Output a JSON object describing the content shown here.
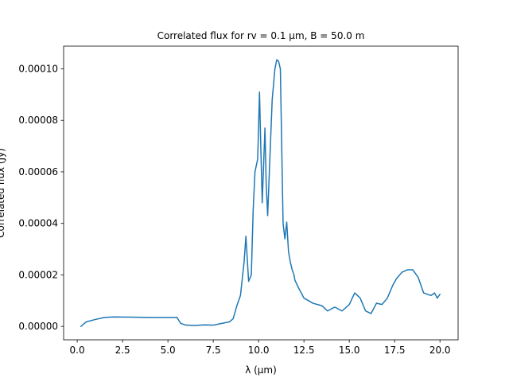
{
  "chart_data": {
    "type": "line",
    "title": "Correlated flux for rv = 0.1 μm, B = 50.0 m",
    "xlabel": "λ (μm)",
    "ylabel": "Correlated flux (Jy)",
    "xlim": [
      -0.75,
      21.0
    ],
    "ylim": [
      -5.2e-06,
      0.0001088
    ],
    "xticks": [
      0.0,
      2.5,
      5.0,
      7.5,
      10.0,
      12.5,
      15.0,
      17.5,
      20.0
    ],
    "xtick_labels": [
      "0.0",
      "2.5",
      "5.0",
      "7.5",
      "10.0",
      "12.5",
      "15.0",
      "17.5",
      "20.0"
    ],
    "yticks": [
      0.0,
      2e-05,
      4e-05,
      6e-05,
      8e-05,
      0.0001
    ],
    "ytick_labels": [
      "0.00000",
      "0.00002",
      "0.00004",
      "0.00006",
      "0.00008",
      "0.00010"
    ],
    "grid": false,
    "color": "#1f77b4",
    "series": [
      {
        "name": "",
        "x": [
          0.2,
          0.5,
          1.0,
          1.5,
          2.0,
          3.0,
          4.0,
          5.0,
          5.5,
          5.7,
          6.0,
          6.5,
          7.0,
          7.5,
          8.0,
          8.4,
          8.6,
          8.8,
          9.0,
          9.2,
          9.3,
          9.45,
          9.6,
          9.7,
          9.8,
          9.95,
          10.05,
          10.12,
          10.2,
          10.35,
          10.42,
          10.5,
          10.62,
          10.75,
          10.9,
          11.0,
          11.1,
          11.2,
          11.35,
          11.45,
          11.55,
          11.65,
          11.75,
          11.85,
          11.95,
          12.0,
          12.2,
          12.5,
          13.0,
          13.5,
          13.8,
          14.2,
          14.6,
          15.0,
          15.3,
          15.6,
          15.9,
          16.2,
          16.5,
          16.8,
          17.1,
          17.4,
          17.6,
          17.9,
          18.2,
          18.5,
          18.8,
          19.1,
          19.5,
          19.7,
          19.85,
          20.0
        ],
        "y": [
          0.0,
          1.8e-06,
          2.7e-06,
          3.5e-06,
          3.7e-06,
          3.6e-06,
          3.5e-06,
          3.5e-06,
          3.5e-06,
          1.2e-06,
          5e-07,
          4e-07,
          6e-07,
          5e-07,
          1.2e-06,
          1.8e-06,
          3e-06,
          8e-06,
          1.2e-05,
          2.5e-05,
          3.5e-05,
          1.75e-05,
          2e-05,
          4.5e-05,
          6e-05,
          6.5e-05,
          9.1e-05,
          7e-05,
          4.8e-05,
          7.7e-05,
          5.5e-05,
          4.3e-05,
          6.5e-05,
          8.8e-05,
          0.0001,
          0.0001035,
          0.000103,
          0.0001,
          4e-05,
          3.4e-05,
          4.05e-05,
          2.9e-05,
          2.5e-05,
          2.2e-05,
          2e-05,
          1.8e-05,
          1.5e-05,
          1.1e-05,
          9e-06,
          8e-06,
          6e-06,
          7.5e-06,
          6e-06,
          8.5e-06,
          1.3e-05,
          1.1e-05,
          6e-06,
          5e-06,
          9e-06,
          8.5e-06,
          1.1e-05,
          1.6e-05,
          1.85e-05,
          2.1e-05,
          2.2e-05,
          2.2e-05,
          1.9e-05,
          1.3e-05,
          1.2e-05,
          1.3e-05,
          1.1e-05,
          1.25e-05
        ]
      }
    ]
  }
}
